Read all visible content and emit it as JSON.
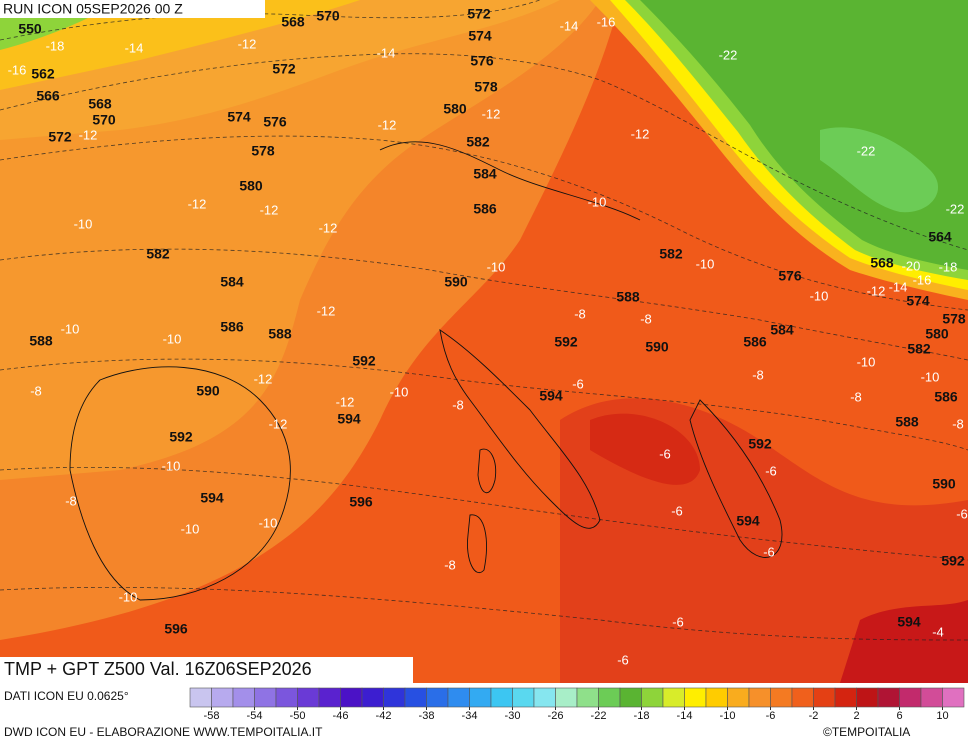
{
  "header": {
    "run": "RUN ICON 05SEP2026 00 Z",
    "title": "TMP + GPT Z500 Val. 16Z06SEP2026"
  },
  "footer": {
    "source": "DATI ICON EU 0.0625°",
    "credit": "DWD ICON EU - ELABORAZIONE WWW.TEMPOITALIA.IT",
    "copyright": "©TEMPOITALIA"
  },
  "map": {
    "geopotential_labels": [
      550,
      562,
      566,
      568,
      570,
      572,
      568,
      570,
      572,
      574,
      576,
      578,
      580,
      572,
      574,
      576,
      578,
      580,
      582,
      584,
      586,
      582,
      584,
      586,
      588,
      590,
      588,
      590,
      592,
      594,
      592,
      594,
      596,
      596,
      582,
      588,
      590,
      592,
      594,
      576,
      584,
      586,
      564,
      568,
      574,
      578,
      580,
      582,
      586,
      588,
      592,
      594,
      590,
      592,
      594
    ],
    "temperature_labels": [
      -18,
      -16,
      -14,
      -12,
      -12,
      -14,
      -12,
      -14,
      -16,
      -22,
      -12,
      -12,
      -22,
      -22,
      -12,
      -12,
      -10,
      -12,
      -10,
      -10,
      -10,
      -20,
      -16,
      -18,
      -14,
      -12,
      -10,
      -12,
      -10,
      -10,
      -8,
      -8,
      -12,
      -12,
      -10,
      -8,
      -8,
      -6,
      -8,
      -10,
      -10,
      -8,
      -8,
      -12,
      -10,
      -6,
      -6,
      -8,
      -10,
      -10,
      -6,
      -6,
      -6,
      -8,
      -10,
      -6,
      -6,
      -4
    ]
  },
  "colorbar": {
    "lim": [
      -60,
      12
    ],
    "ticks": [
      -58,
      -54,
      -50,
      -46,
      -42,
      -38,
      -34,
      -30,
      -26,
      -22,
      -18,
      -14,
      -10,
      -6,
      -2,
      2,
      6,
      10
    ],
    "colors": [
      "#c9c5ef",
      "#b7aaee",
      "#a38fea",
      "#8f73e4",
      "#7b56dd",
      "#6a3ad6",
      "#5a22cf",
      "#4b12c6",
      "#3c1ed0",
      "#2f34da",
      "#2750e2",
      "#2a6ee8",
      "#2f8cef",
      "#33aaf2",
      "#3cc6f2",
      "#5ad8ef",
      "#86e6ef",
      "#a8eec8",
      "#8fe08a",
      "#6ccc56",
      "#5ab432",
      "#8ed43a",
      "#d8ec2a",
      "#ffee00",
      "#ffcc00",
      "#f9ac1e",
      "#f6902a",
      "#f47a22",
      "#f0601c",
      "#e44014",
      "#d42410",
      "#be1416",
      "#b01434",
      "#c22a6c",
      "#d24c98",
      "#e070c0"
    ]
  }
}
